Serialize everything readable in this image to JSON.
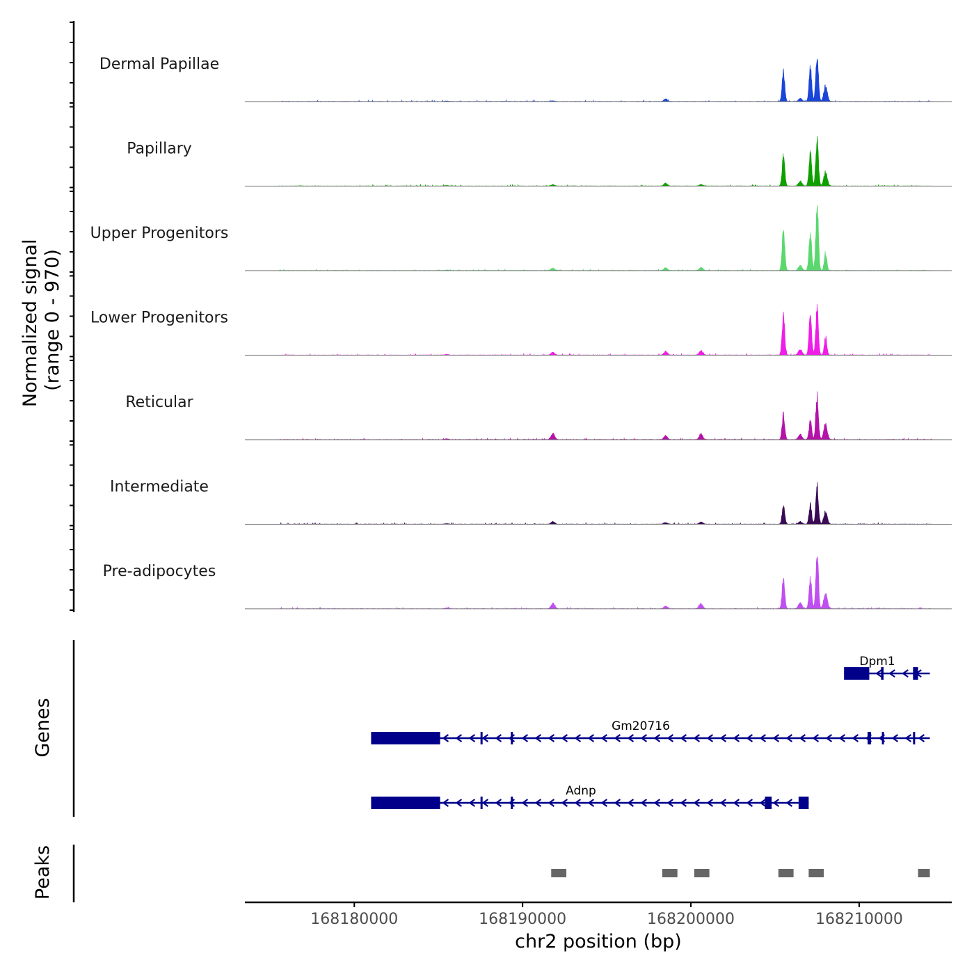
{
  "chart_data": {
    "type": "area",
    "title": "",
    "ylabel_line1": "Normalized signal",
    "ylabel_line2": "(range 0 - 970)",
    "xlabel": "chr2 position (bp)",
    "xlim": [
      168173500,
      168215500
    ],
    "ylim": [
      0,
      970
    ],
    "x_ticks": [
      168180000,
      168190000,
      168200000,
      168210000
    ],
    "x_tick_labels": [
      "168180000",
      "168190000",
      "168200000",
      "168210000"
    ],
    "series": [
      {
        "name": "Dermal Papillae",
        "color": "#1a45d9",
        "peaks": [
          [
            168185500,
            10
          ],
          [
            168191800,
            15
          ],
          [
            168198500,
            50
          ],
          [
            168205500,
            620
          ],
          [
            168206500,
            60
          ],
          [
            168207100,
            730
          ],
          [
            168207500,
            970
          ],
          [
            168208000,
            300
          ]
        ]
      },
      {
        "name": "Papillary",
        "color": "#0fa000",
        "peaks": [
          [
            168185500,
            10
          ],
          [
            168191800,
            25
          ],
          [
            168198500,
            55
          ],
          [
            168200600,
            30
          ],
          [
            168205500,
            610
          ],
          [
            168206500,
            95
          ],
          [
            168207100,
            680
          ],
          [
            168207500,
            940
          ],
          [
            168208000,
            280
          ]
        ]
      },
      {
        "name": "Upper Progenitors",
        "color": "#5ad86e",
        "peaks": [
          [
            168185500,
            10
          ],
          [
            168191800,
            50
          ],
          [
            168198500,
            55
          ],
          [
            168200600,
            60
          ],
          [
            168205500,
            820
          ],
          [
            168206500,
            100
          ],
          [
            168207100,
            800
          ],
          [
            168207500,
            1300
          ],
          [
            168208000,
            350
          ]
        ]
      },
      {
        "name": "Lower Progenitors",
        "color": "#f01ce8",
        "peaks": [
          [
            168185500,
            15
          ],
          [
            168191800,
            55
          ],
          [
            168198500,
            70
          ],
          [
            168200600,
            90
          ],
          [
            168205500,
            800
          ],
          [
            168206500,
            120
          ],
          [
            168207100,
            780
          ],
          [
            168207500,
            950
          ],
          [
            168208000,
            360
          ]
        ]
      },
      {
        "name": "Reticular",
        "color": "#b412a8",
        "peaks": [
          [
            168185500,
            15
          ],
          [
            168191800,
            120
          ],
          [
            168198500,
            80
          ],
          [
            168200600,
            110
          ],
          [
            168205500,
            500
          ],
          [
            168206500,
            100
          ],
          [
            168207100,
            380
          ],
          [
            168207500,
            870
          ],
          [
            168208000,
            300
          ]
        ]
      },
      {
        "name": "Intermediate",
        "color": "#3a0a55",
        "peaks": [
          [
            168185500,
            10
          ],
          [
            168191800,
            50
          ],
          [
            168198500,
            30
          ],
          [
            168200600,
            40
          ],
          [
            168205500,
            360
          ],
          [
            168206500,
            50
          ],
          [
            168207100,
            380
          ],
          [
            168207500,
            770
          ],
          [
            168208000,
            250
          ]
        ]
      },
      {
        "name": "Pre-adipocytes",
        "color": "#c04ef0",
        "peaks": [
          [
            168185500,
            15
          ],
          [
            168191800,
            100
          ],
          [
            168198500,
            50
          ],
          [
            168200600,
            95
          ],
          [
            168205500,
            610
          ],
          [
            168206500,
            120
          ],
          [
            168207100,
            600
          ],
          [
            168207500,
            1100
          ],
          [
            168208000,
            300
          ]
        ]
      }
    ],
    "genes": [
      {
        "name": "Dpm1",
        "start": 168209100,
        "end": 168214200,
        "strand": "-",
        "exons": [
          [
            168209100,
            168210600
          ],
          [
            168211300,
            168211450
          ],
          [
            168213200,
            168213500
          ]
        ]
      },
      {
        "name": "Gm20716",
        "start": 168181000,
        "end": 168214200,
        "strand": "-",
        "exons": [
          [
            168181000,
            168185100
          ],
          [
            168187500,
            168187600
          ],
          [
            168189300,
            168189400
          ],
          [
            168210500,
            168210700
          ],
          [
            168211350,
            168211450
          ],
          [
            168213200,
            168213300
          ]
        ]
      },
      {
        "name": "Adnp",
        "start": 168181000,
        "end": 168207000,
        "strand": "-",
        "exons": [
          [
            168181000,
            168185100
          ],
          [
            168187500,
            168187600
          ],
          [
            168189300,
            168189400
          ],
          [
            168204400,
            168204800
          ],
          [
            168206400,
            168207000
          ]
        ]
      }
    ],
    "genes_panel_label": "Genes",
    "peaks_panel_label": "Peaks",
    "peaks": [
      [
        168191700,
        168192600
      ],
      [
        168198300,
        168199200
      ],
      [
        168200200,
        168201100
      ],
      [
        168205200,
        168206100
      ],
      [
        168207000,
        168207900
      ],
      [
        168213500,
        168214200
      ]
    ]
  }
}
